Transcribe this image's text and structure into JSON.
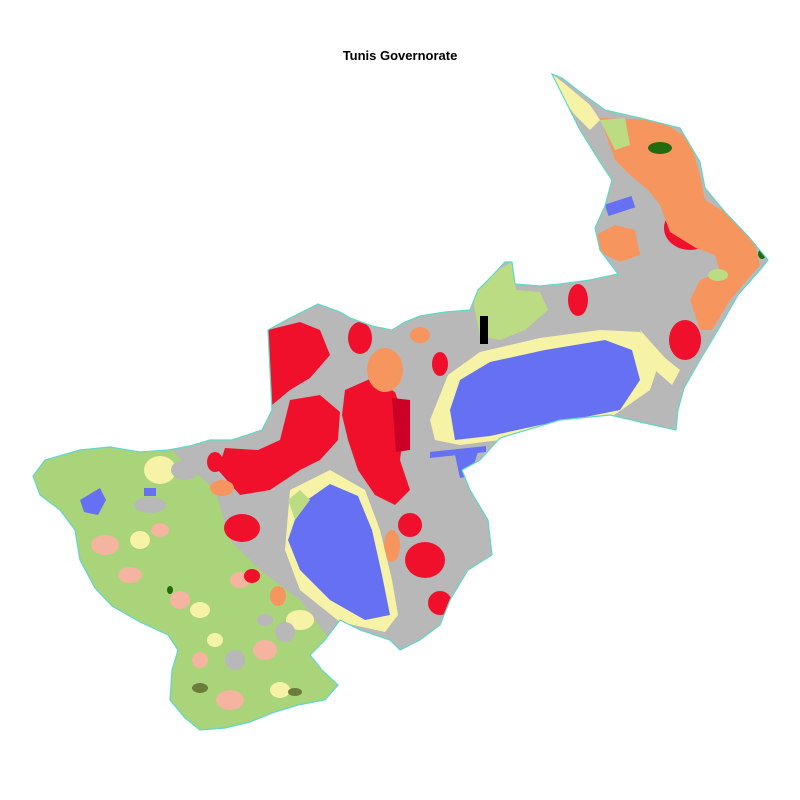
{
  "title": "Tunis Governorate",
  "colors": {
    "boundary": "#5fd8c8",
    "urban_gray": "#b8b8b8",
    "lake_blue": "#6670f2",
    "dense_red": "#f0102c",
    "dark_red": "#cc0026",
    "orange": "#f7955f",
    "light_green": "#bcdc84",
    "agri_green": "#a9d47a",
    "pale_yellow": "#f7f3a6",
    "salmon": "#f4b4a0",
    "dark_green": "#246b10",
    "olive": "#6a7d3a",
    "black": "#000000"
  }
}
